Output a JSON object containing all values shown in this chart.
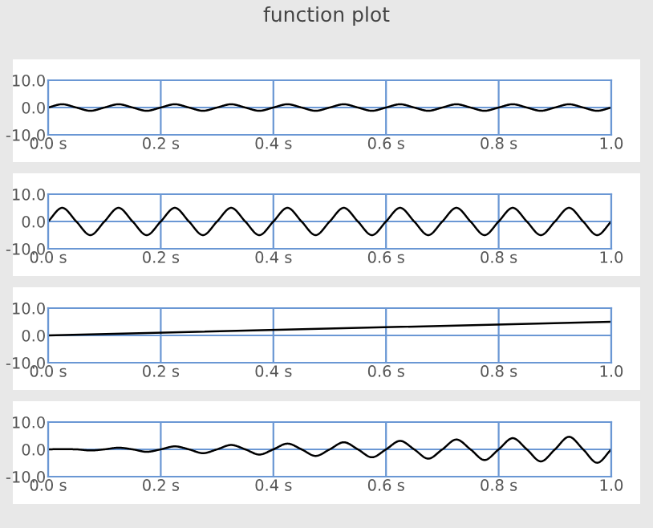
{
  "chart_data": [
    {
      "type": "line",
      "title": "function plot",
      "xlim": [
        0,
        1.0
      ],
      "ylim": [
        -10,
        10
      ],
      "grid": true,
      "xticks": [
        {
          "value": 0,
          "label": "0.0 s"
        },
        {
          "value": 0.2,
          "label": "0.2 s"
        },
        {
          "value": 0.4,
          "label": "0.4 s"
        },
        {
          "value": 0.6,
          "label": "0.6 s"
        },
        {
          "value": 0.8,
          "label": "0.8 s"
        },
        {
          "value": 1.0,
          "label": "1.0"
        }
      ],
      "yticks": [
        {
          "value": -10,
          "label": "-10.0"
        },
        {
          "value": 0,
          "label": "0.0"
        },
        {
          "value": 10,
          "label": "10.0"
        }
      ],
      "series": [
        {
          "color": "#000000",
          "x": [
            0,
            0.025,
            0.05,
            0.075,
            0.1,
            0.125,
            0.15,
            0.175,
            0.2,
            0.225,
            0.25,
            0.275,
            0.3,
            0.325,
            0.35,
            0.375,
            0.4,
            0.425,
            0.45,
            0.475,
            0.5,
            0.525,
            0.55,
            0.575,
            0.6,
            0.625,
            0.65,
            0.675,
            0.7,
            0.725,
            0.75,
            0.775,
            0.8,
            0.825,
            0.85,
            0.875,
            0.9,
            0.925,
            0.95,
            0.975,
            1.0
          ],
          "values": [
            0,
            1.2,
            0,
            -1.2,
            0,
            1.2,
            0,
            -1.2,
            0,
            1.2,
            0,
            -1.2,
            0,
            1.2,
            0,
            -1.2,
            0,
            1.2,
            0,
            -1.2,
            0,
            1.2,
            0,
            -1.2,
            0,
            1.2,
            0,
            -1.2,
            0,
            1.2,
            0,
            -1.2,
            0,
            1.2,
            0,
            -1.2,
            0,
            1.2,
            0,
            -1.2,
            0
          ]
        }
      ]
    },
    {
      "type": "line",
      "xlim": [
        0,
        1.0
      ],
      "ylim": [
        -10,
        10
      ],
      "grid": true,
      "xticks": [
        {
          "value": 0,
          "label": "0.0 s"
        },
        {
          "value": 0.2,
          "label": "0.2 s"
        },
        {
          "value": 0.4,
          "label": "0.4 s"
        },
        {
          "value": 0.6,
          "label": "0.6 s"
        },
        {
          "value": 0.8,
          "label": "0.8 s"
        },
        {
          "value": 1.0,
          "label": "1.0"
        }
      ],
      "yticks": [
        {
          "value": -10,
          "label": "-10.0"
        },
        {
          "value": 0,
          "label": "0.0"
        },
        {
          "value": 10,
          "label": "10.0"
        }
      ],
      "series": [
        {
          "color": "#000000",
          "x": [
            0,
            0.025,
            0.05,
            0.075,
            0.1,
            0.125,
            0.15,
            0.175,
            0.2,
            0.225,
            0.25,
            0.275,
            0.3,
            0.325,
            0.35,
            0.375,
            0.4,
            0.425,
            0.45,
            0.475,
            0.5,
            0.525,
            0.55,
            0.575,
            0.6,
            0.625,
            0.65,
            0.675,
            0.7,
            0.725,
            0.75,
            0.775,
            0.8,
            0.825,
            0.85,
            0.875,
            0.9,
            0.925,
            0.95,
            0.975,
            1.0
          ],
          "values": [
            0,
            5,
            0,
            -5,
            0,
            5,
            0,
            -5,
            0,
            5,
            0,
            -5,
            0,
            5,
            0,
            -5,
            0,
            5,
            0,
            -5,
            0,
            5,
            0,
            -5,
            0,
            5,
            0,
            -5,
            0,
            5,
            0,
            -5,
            0,
            5,
            0,
            -5,
            0,
            5,
            0,
            -5,
            0
          ]
        }
      ]
    },
    {
      "type": "line",
      "xlim": [
        0,
        1.0
      ],
      "ylim": [
        -10,
        10
      ],
      "grid": true,
      "xticks": [
        {
          "value": 0,
          "label": "0.0 s"
        },
        {
          "value": 0.2,
          "label": "0.2 s"
        },
        {
          "value": 0.4,
          "label": "0.4 s"
        },
        {
          "value": 0.6,
          "label": "0.6 s"
        },
        {
          "value": 0.8,
          "label": "0.8 s"
        },
        {
          "value": 1.0,
          "label": "1.0"
        }
      ],
      "yticks": [
        {
          "value": -10,
          "label": "-10.0"
        },
        {
          "value": 0,
          "label": "0.0"
        },
        {
          "value": 10,
          "label": "10.0"
        }
      ],
      "series": [
        {
          "color": "#000000",
          "x": [
            0,
            1.0
          ],
          "values": [
            0,
            5
          ]
        }
      ]
    },
    {
      "type": "line",
      "xlim": [
        0,
        1.0
      ],
      "ylim": [
        -10,
        10
      ],
      "grid": true,
      "xticks": [
        {
          "value": 0,
          "label": "0.0 s"
        },
        {
          "value": 0.2,
          "label": "0.2 s"
        },
        {
          "value": 0.4,
          "label": "0.4 s"
        },
        {
          "value": 0.6,
          "label": "0.6 s"
        },
        {
          "value": 0.8,
          "label": "0.8 s"
        },
        {
          "value": 1.0,
          "label": "1.0"
        }
      ],
      "yticks": [
        {
          "value": -10,
          "label": "-10.0"
        },
        {
          "value": 0,
          "label": "0.0"
        },
        {
          "value": 10,
          "label": "10.0"
        }
      ],
      "series": [
        {
          "color": "#000000",
          "x": [
            0,
            0.025,
            0.05,
            0.075,
            0.1,
            0.125,
            0.15,
            0.175,
            0.2,
            0.225,
            0.25,
            0.275,
            0.3,
            0.325,
            0.35,
            0.375,
            0.4,
            0.425,
            0.45,
            0.475,
            0.5,
            0.525,
            0.55,
            0.575,
            0.6,
            0.625,
            0.65,
            0.675,
            0.7,
            0.725,
            0.75,
            0.775,
            0.8,
            0.825,
            0.85,
            0.875,
            0.9,
            0.925,
            0.95,
            0.975,
            1.0
          ],
          "values": [
            0,
            0.1,
            0,
            -0.4,
            0,
            0.6,
            0,
            -0.9,
            0,
            1.1,
            0,
            -1.4,
            0,
            1.6,
            0,
            -1.9,
            0,
            2.1,
            0,
            -2.4,
            0,
            2.6,
            0,
            -2.9,
            0,
            3.1,
            0,
            -3.4,
            0,
            3.6,
            0,
            -3.9,
            0,
            4.1,
            0,
            -4.4,
            0,
            4.6,
            0,
            -4.9,
            0
          ]
        }
      ]
    }
  ]
}
